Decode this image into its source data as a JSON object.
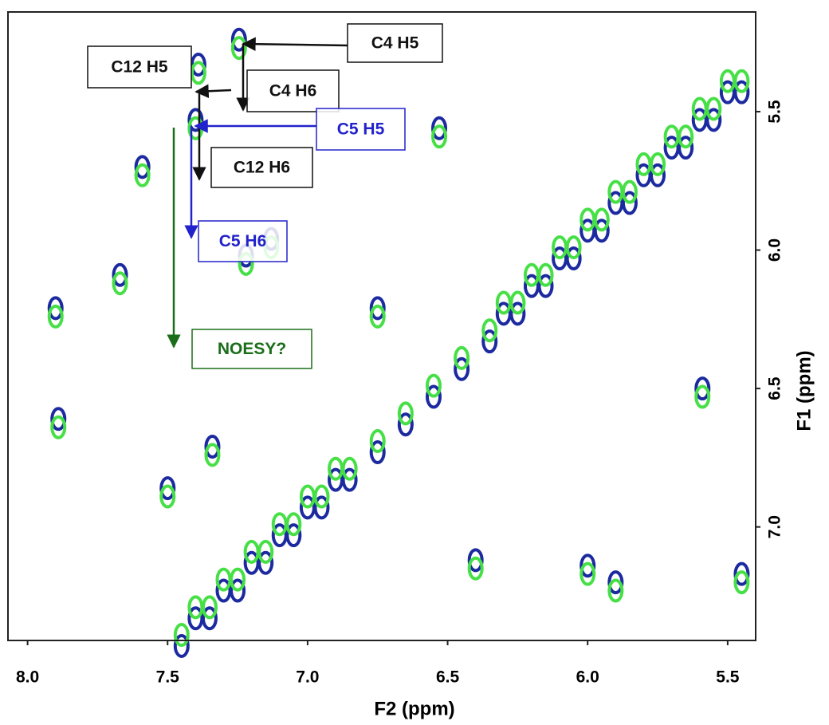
{
  "chart_data": {
    "type": "scatter",
    "x_label": "F2 (ppm)",
    "y_label": "F1 (ppm)",
    "xlim": [
      8.07,
      5.4
    ],
    "ylim": [
      5.14,
      7.41
    ],
    "xticks": [
      {
        "value": 8,
        "label": "8.0"
      },
      7.5,
      {
        "value": 7,
        "label": "7.0"
      },
      6.5,
      {
        "value": 6,
        "label": "6.0"
      },
      5.5
    ],
    "yticks": [
      5.5,
      {
        "value": 6,
        "label": "6.0"
      },
      6.5,
      {
        "value": 7,
        "label": "7.0"
      }
    ],
    "series": [
      {
        "color": "#1c2aa0",
        "x": [
          7.45,
          7.35,
          7.25,
          7.15,
          7.05,
          6.95,
          6.85,
          6.75,
          6.65,
          6.55,
          6.45,
          6.35,
          6.25,
          6.15,
          6.05,
          5.95,
          5.85,
          5.75,
          5.65,
          5.55,
          5.45,
          7.4,
          7.3,
          7.2,
          7.1,
          7.0,
          6.9,
          6.3,
          6.2,
          6.1,
          6.0,
          5.9,
          5.8,
          5.7,
          5.6,
          5.5,
          7.245,
          7.39,
          7.4,
          7.67,
          7.9,
          7.89,
          7.5,
          7.34,
          7.22,
          7.13,
          6.53,
          6.75,
          6.4,
          6.0,
          5.59,
          5.45,
          5.9,
          7.59
        ],
        "values": [
          7.43,
          7.33,
          7.23,
          7.13,
          7.03,
          6.93,
          6.83,
          6.73,
          6.63,
          6.53,
          6.43,
          6.33,
          6.23,
          6.13,
          6.03,
          5.93,
          5.83,
          5.73,
          5.63,
          5.53,
          5.43,
          7.33,
          7.23,
          7.13,
          7.03,
          6.93,
          6.83,
          6.23,
          6.13,
          6.03,
          5.93,
          5.83,
          5.73,
          5.63,
          5.53,
          5.43,
          5.24,
          5.33,
          5.53,
          6.09,
          6.21,
          6.61,
          6.86,
          6.71,
          6.02,
          5.96,
          5.56,
          6.21,
          7.12,
          7.14,
          6.5,
          7.17,
          7.2,
          5.7
        ]
      },
      {
        "color": "#46e046",
        "x": [
          7.45,
          7.35,
          7.25,
          7.15,
          7.05,
          6.95,
          6.85,
          6.75,
          6.65,
          6.55,
          6.45,
          6.35,
          6.25,
          6.15,
          6.05,
          5.95,
          5.85,
          5.75,
          5.65,
          5.55,
          5.45,
          7.4,
          7.3,
          7.2,
          7.1,
          7.0,
          6.9,
          6.3,
          6.2,
          6.1,
          6.0,
          5.9,
          5.8,
          5.7,
          5.6,
          5.5,
          7.245,
          7.39,
          7.4,
          7.67,
          7.9,
          7.89,
          7.5,
          7.34,
          7.22,
          7.13,
          6.53,
          6.75,
          6.4,
          6.0,
          5.59,
          5.45,
          5.9,
          7.59
        ],
        "values": [
          7.39,
          7.29,
          7.19,
          7.09,
          6.99,
          6.89,
          6.79,
          6.69,
          6.59,
          6.49,
          6.39,
          6.29,
          6.19,
          6.09,
          5.99,
          5.89,
          5.79,
          5.69,
          5.59,
          5.49,
          5.39,
          7.29,
          7.19,
          7.09,
          6.99,
          6.89,
          6.79,
          6.19,
          6.09,
          5.99,
          5.89,
          5.79,
          5.69,
          5.59,
          5.49,
          5.39,
          5.27,
          5.36,
          5.56,
          6.12,
          6.24,
          6.64,
          6.89,
          6.74,
          6.05,
          5.99,
          5.59,
          6.24,
          7.15,
          7.17,
          6.53,
          7.2,
          7.23,
          5.73
        ]
      }
    ],
    "annotations": [
      {
        "text": "C4 H5",
        "color": "#111111"
      },
      {
        "text": "C12 H5",
        "color": "#111111"
      },
      {
        "text": "C4 H6",
        "color": "#111111"
      },
      {
        "text": "C5 H5",
        "color": "#2222cc"
      },
      {
        "text": "C12 H6",
        "color": "#111111"
      },
      {
        "text": "C5 H6",
        "color": "#2222cc"
      },
      {
        "text": "NOESY?",
        "color": "#1a6e1a"
      }
    ]
  }
}
